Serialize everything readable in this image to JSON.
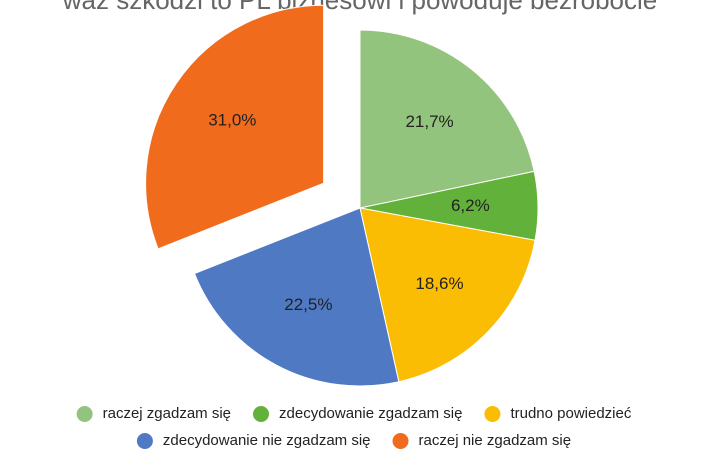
{
  "chart_data": {
    "type": "pie",
    "title": "waż szkodzi to PL biznesowi i powoduje bezrobocie",
    "categories": [
      "raczej zgadzam się",
      "zdecydowanie zgadzam się",
      "trudno powiedzieć",
      "zdecydowanie nie zgadzam się",
      "raczej nie zgadzam się"
    ],
    "values": [
      21.7,
      6.2,
      18.6,
      22.5,
      31.0
    ],
    "value_labels": [
      "21,7%",
      "6,2%",
      "18,6%",
      "22,5%",
      "31,0%"
    ],
    "colors": [
      "#93c47d",
      "#62b13a",
      "#fbbc04",
      "#5079c4",
      "#f06b1c"
    ],
    "legend": "bottom"
  }
}
